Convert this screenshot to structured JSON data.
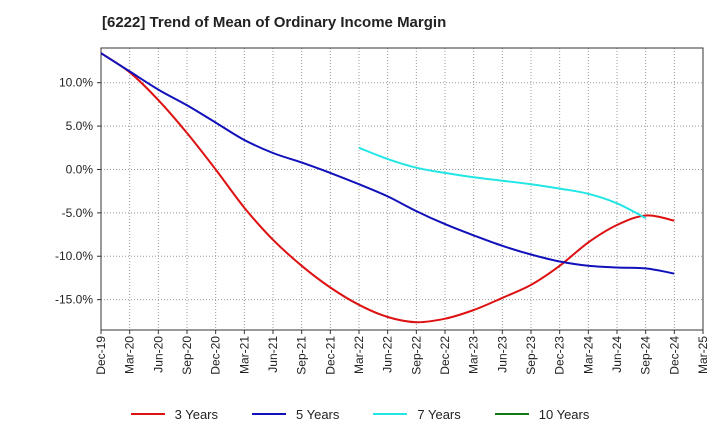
{
  "chart_data": {
    "type": "line",
    "title": "[6222]  Trend of Mean of Ordinary Income Margin",
    "xlabel": "",
    "ylabel": "",
    "ylim": [
      -18.5,
      14
    ],
    "y_ticks": [
      10,
      5,
      0,
      -5,
      -10,
      -15
    ],
    "y_tick_labels": [
      "10.0%",
      "5.0%",
      "0.0%",
      "-5.0%",
      "-10.0%",
      "-15.0%"
    ],
    "x_tick_labels": [
      "Dec-19",
      "Mar-20",
      "Jun-20",
      "Sep-20",
      "Dec-20",
      "Mar-21",
      "Jun-21",
      "Sep-21",
      "Dec-21",
      "Mar-22",
      "Jun-22",
      "Sep-22",
      "Dec-22",
      "Mar-23",
      "Jun-23",
      "Sep-23",
      "Dec-23",
      "Mar-24",
      "Jun-24",
      "Sep-24",
      "Dec-24",
      "Mar-25"
    ],
    "grid": true,
    "legend_position": "bottom",
    "series": [
      {
        "name": "3 Years",
        "color": "#dd1111",
        "x_start": "Dec-19",
        "values": [
          13.4,
          11.2,
          8.0,
          4.2,
          0.0,
          -4.4,
          -8.1,
          -11.1,
          -13.6,
          -15.6,
          -17.0,
          -17.6,
          -17.2,
          -16.2,
          -14.8,
          -13.3,
          -11.1,
          -8.4,
          -6.4,
          -5.3,
          -5.9
        ]
      },
      {
        "name": "5 Years",
        "color": "#1111bb",
        "x_start": "Dec-19",
        "values": [
          13.4,
          11.3,
          9.2,
          7.4,
          5.4,
          3.4,
          1.9,
          0.8,
          -0.4,
          -1.7,
          -3.1,
          -4.8,
          -6.3,
          -7.6,
          -8.8,
          -9.8,
          -10.6,
          -11.1,
          -11.3,
          -11.4,
          -12.0
        ]
      },
      {
        "name": "7 Years",
        "color": "#22e5e5",
        "x_start": "Mar-22",
        "values": [
          2.5,
          1.2,
          0.2,
          -0.4,
          -0.9,
          -1.3,
          -1.7,
          -2.2,
          -2.8,
          -3.9,
          -5.6
        ]
      },
      {
        "name": "10 Years",
        "color": "#117711",
        "x_start": "",
        "values": []
      }
    ]
  }
}
